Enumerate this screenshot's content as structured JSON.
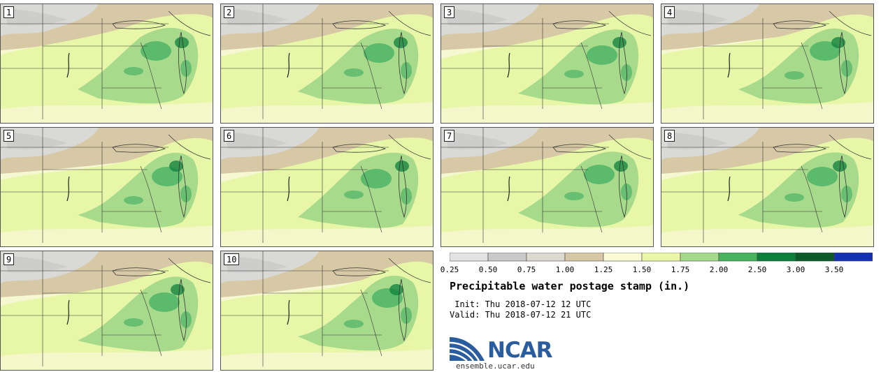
{
  "panels": [
    {
      "label": "1"
    },
    {
      "label": "2"
    },
    {
      "label": "3"
    },
    {
      "label": "4"
    },
    {
      "label": "5"
    },
    {
      "label": "6"
    },
    {
      "label": "7"
    },
    {
      "label": "8"
    },
    {
      "label": "9"
    },
    {
      "label": "10"
    }
  ],
  "colorbar": {
    "ticks": [
      "0.25",
      "0.50",
      "0.75",
      "1.00",
      "1.25",
      "1.50",
      "1.75",
      "2.00",
      "2.50",
      "3.00",
      "3.50"
    ],
    "bins": [
      {
        "from": 0.25,
        "to": 0.5,
        "color": "#e3e3e3"
      },
      {
        "from": 0.5,
        "to": 0.75,
        "color": "#c9c9c9"
      },
      {
        "from": 0.75,
        "to": 1.0,
        "color": "#dcdad0"
      },
      {
        "from": 1.0,
        "to": 1.25,
        "color": "#d6c8a6"
      },
      {
        "from": 1.25,
        "to": 1.5,
        "color": "#fafad7"
      },
      {
        "from": 1.5,
        "to": 1.75,
        "color": "#eaf7a9"
      },
      {
        "from": 1.75,
        "to": 2.0,
        "color": "#a6d98b"
      },
      {
        "from": 2.0,
        "to": 2.5,
        "color": "#47b35f"
      },
      {
        "from": 2.5,
        "to": 3.0,
        "color": "#0e7f3a"
      },
      {
        "from": 3.0,
        "to": 3.5,
        "color": "#0c5a28"
      },
      {
        "from": 3.5,
        "to": null,
        "color": "#1431b4"
      }
    ]
  },
  "title": "Precipitable water postage stamp (in.)",
  "init_line": " Init: Thu 2018-07-12 12 UTC",
  "valid_line": "Valid: Thu 2018-07-12 21 UTC",
  "logo_text": "NCAR",
  "site": "ensemble.ucar.edu",
  "colors": {
    "low_gray": "#d9d9d6",
    "mid_gray": "#c8c8c8",
    "tan": "#d8c9a6",
    "pale_yellow": "#f6f8d2",
    "yellow_green": "#e8f6a8",
    "light_green": "#a8da8c",
    "green": "#4db465",
    "dark_green": "#168540",
    "ncar_blue": "#2a5d9f"
  }
}
